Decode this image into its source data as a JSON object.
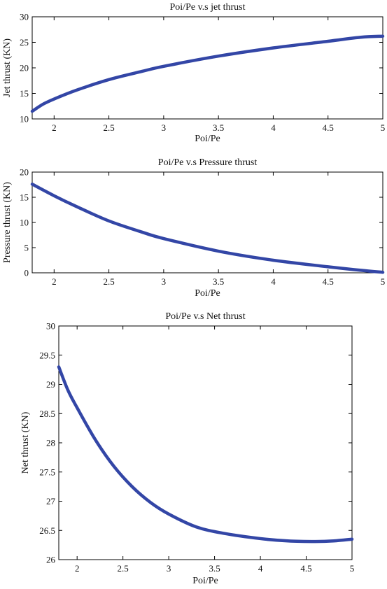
{
  "chart_data": [
    {
      "type": "line",
      "title": "Poi/Pe v.s jet thrust",
      "xlabel": "Poi/Pe",
      "ylabel": "Jet thrust (KN)",
      "xlim": [
        1.8,
        5
      ],
      "ylim": [
        10,
        30
      ],
      "xticks": [
        "2",
        "2.5",
        "3",
        "3.5",
        "4",
        "4.5",
        "5"
      ],
      "yticks": [
        "10",
        "15",
        "20",
        "25",
        "30"
      ],
      "grid": false,
      "color": "#3346a6",
      "series": [
        {
          "x": [
            1.8,
            1.9,
            2.0,
            2.2,
            2.5,
            2.8,
            3.0,
            3.5,
            4.0,
            4.5,
            4.8,
            5.0
          ],
          "y": [
            11.5,
            12.9,
            13.9,
            15.6,
            17.7,
            19.3,
            20.3,
            22.3,
            23.9,
            25.2,
            26.0,
            26.2
          ]
        }
      ]
    },
    {
      "type": "line",
      "title": "Poi/Pe v.s Pressure thrust",
      "xlabel": "Poi/Pe",
      "ylabel": "Pressure thrust (KN)",
      "xlim": [
        1.8,
        5
      ],
      "ylim": [
        0,
        20
      ],
      "xticks": [
        "2",
        "2.5",
        "3",
        "3.5",
        "4",
        "4.5",
        "5"
      ],
      "yticks": [
        "0",
        "5",
        "10",
        "15",
        "20"
      ],
      "grid": false,
      "color": "#3346a6",
      "series": [
        {
          "x": [
            1.8,
            2.0,
            2.2,
            2.5,
            2.8,
            3.0,
            3.5,
            4.0,
            4.5,
            4.8,
            5.0
          ],
          "y": [
            17.6,
            15.3,
            13.2,
            10.3,
            8.1,
            6.8,
            4.3,
            2.5,
            1.2,
            0.5,
            0.1
          ]
        }
      ]
    },
    {
      "type": "line",
      "title": "Poi/Pe v.s Net thrust",
      "xlabel": "Poi/Pe",
      "ylabel": "Net thrust (KN)",
      "xlim": [
        1.8,
        5
      ],
      "ylim": [
        26,
        30
      ],
      "xticks": [
        "2",
        "2.5",
        "3",
        "3.5",
        "4",
        "4.5",
        "5"
      ],
      "yticks": [
        "26",
        "26.5",
        "27",
        "27.5",
        "28",
        "28.5",
        "29",
        "29.5",
        "30"
      ],
      "grid": false,
      "color": "#3346a6",
      "series": [
        {
          "x": [
            1.8,
            1.9,
            2.0,
            2.2,
            2.4,
            2.6,
            2.8,
            3.0,
            3.3,
            3.6,
            4.0,
            4.3,
            4.6,
            4.8,
            5.0
          ],
          "y": [
            29.3,
            28.9,
            28.6,
            28.05,
            27.6,
            27.25,
            26.98,
            26.78,
            26.56,
            26.45,
            26.36,
            26.32,
            26.31,
            26.32,
            26.35
          ]
        }
      ]
    }
  ]
}
